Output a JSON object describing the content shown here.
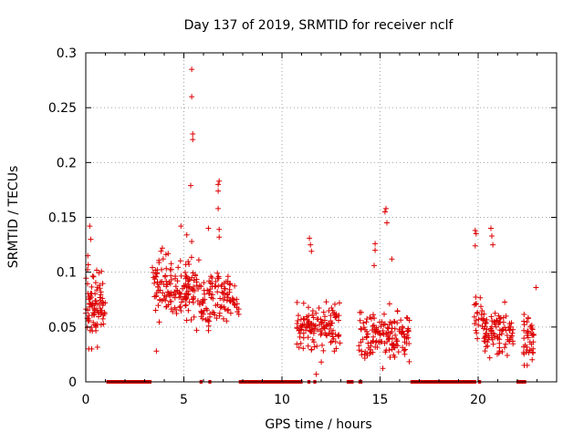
{
  "chart_data": {
    "type": "scatter",
    "title": "Day 137 of 2019, SRMTID for receiver nclf",
    "xlabel": "GPS time / hours",
    "ylabel": "SRMTID / TECUs",
    "xlim": [
      0,
      24
    ],
    "ylim": [
      0,
      0.3
    ],
    "x_ticks": [
      0,
      5,
      10,
      15,
      20
    ],
    "x_tick_labels": [
      "0",
      "5",
      "10",
      "15",
      "20"
    ],
    "y_ticks": [
      0,
      0.05,
      0.1,
      0.15,
      0.2,
      0.25,
      0.3
    ],
    "y_tick_labels": [
      "0",
      "0.05",
      "0.1",
      "0.15",
      "0.2",
      "0.25",
      "0.3"
    ],
    "grid": true,
    "marker": "plus",
    "color": "#dd0000",
    "data_gaps_at_zero": [
      [
        1.05,
        3.35
      ],
      [
        5.8,
        5.95
      ],
      [
        6.25,
        6.4
      ],
      [
        7.8,
        11.05
      ],
      [
        11.3,
        11.45
      ],
      [
        11.6,
        11.75
      ],
      [
        13.3,
        13.65
      ],
      [
        13.9,
        14.1
      ],
      [
        16.55,
        19.9
      ],
      [
        20.0,
        20.15
      ],
      [
        21.95,
        22.45
      ]
    ],
    "series": [
      {
        "name": "SRMTID",
        "x": [],
        "y": []
      }
    ],
    "clusters": [
      {
        "x_range": [
          0.0,
          1.0
        ],
        "center": 0.07,
        "spread": 0.025,
        "count": 90
      },
      {
        "x_range": [
          3.35,
          4.55
        ],
        "center": 0.085,
        "spread": 0.025,
        "count": 70
      },
      {
        "x_range": [
          4.55,
          5.8
        ],
        "center": 0.085,
        "spread": 0.022,
        "count": 80
      },
      {
        "x_range": [
          5.8,
          7.8
        ],
        "center": 0.075,
        "spread": 0.02,
        "count": 110
      },
      {
        "x_range": [
          10.75,
          13.0
        ],
        "center": 0.05,
        "spread": 0.02,
        "count": 130
      },
      {
        "x_range": [
          13.9,
          16.5
        ],
        "center": 0.042,
        "spread": 0.018,
        "count": 150
      },
      {
        "x_range": [
          19.8,
          20.3
        ],
        "center": 0.06,
        "spread": 0.015,
        "count": 25
      },
      {
        "x_range": [
          20.3,
          21.8
        ],
        "center": 0.045,
        "spread": 0.018,
        "count": 90
      },
      {
        "x_range": [
          22.3,
          22.85
        ],
        "center": 0.04,
        "spread": 0.018,
        "count": 40
      }
    ],
    "notable_points": [
      {
        "x": 0.1,
        "y": 0.115
      },
      {
        "x": 0.2,
        "y": 0.142
      },
      {
        "x": 0.25,
        "y": 0.13
      },
      {
        "x": 0.15,
        "y": 0.03
      },
      {
        "x": 0.3,
        "y": 0.03
      },
      {
        "x": 3.9,
        "y": 0.122
      },
      {
        "x": 4.2,
        "y": 0.117
      },
      {
        "x": 3.6,
        "y": 0.028
      },
      {
        "x": 4.85,
        "y": 0.142
      },
      {
        "x": 5.15,
        "y": 0.134
      },
      {
        "x": 5.4,
        "y": 0.128
      },
      {
        "x": 5.35,
        "y": 0.179
      },
      {
        "x": 5.45,
        "y": 0.221
      },
      {
        "x": 5.45,
        "y": 0.226
      },
      {
        "x": 5.4,
        "y": 0.26
      },
      {
        "x": 5.4,
        "y": 0.285
      },
      {
        "x": 5.65,
        "y": 0.047
      },
      {
        "x": 6.25,
        "y": 0.14
      },
      {
        "x": 6.75,
        "y": 0.18
      },
      {
        "x": 6.8,
        "y": 0.183
      },
      {
        "x": 6.75,
        "y": 0.174
      },
      {
        "x": 6.75,
        "y": 0.158
      },
      {
        "x": 6.8,
        "y": 0.139
      },
      {
        "x": 6.8,
        "y": 0.132
      },
      {
        "x": 11.4,
        "y": 0.131
      },
      {
        "x": 11.45,
        "y": 0.125
      },
      {
        "x": 11.5,
        "y": 0.119
      },
      {
        "x": 11.75,
        "y": 0.007
      },
      {
        "x": 14.7,
        "y": 0.106
      },
      {
        "x": 14.75,
        "y": 0.126
      },
      {
        "x": 14.75,
        "y": 0.12
      },
      {
        "x": 15.3,
        "y": 0.158
      },
      {
        "x": 15.25,
        "y": 0.155
      },
      {
        "x": 15.35,
        "y": 0.145
      },
      {
        "x": 15.6,
        "y": 0.112
      },
      {
        "x": 19.85,
        "y": 0.138
      },
      {
        "x": 19.9,
        "y": 0.135
      },
      {
        "x": 19.85,
        "y": 0.124
      },
      {
        "x": 20.65,
        "y": 0.14
      },
      {
        "x": 20.7,
        "y": 0.133
      },
      {
        "x": 20.75,
        "y": 0.125
      },
      {
        "x": 22.95,
        "y": 0.086
      },
      {
        "x": 22.35,
        "y": 0.015
      },
      {
        "x": 22.5,
        "y": 0.015
      }
    ]
  }
}
